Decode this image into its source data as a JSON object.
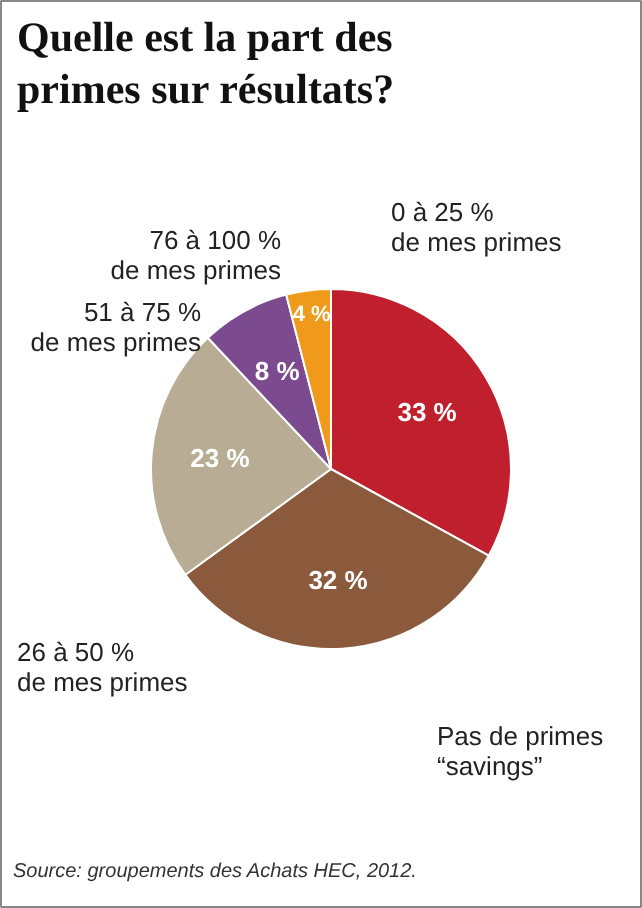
{
  "chart_data": {
    "type": "pie",
    "title": "Quelle est la part des primes sur résultats?",
    "categories": [
      "0 à 25 %\nde mes primes",
      "Pas de primes\n“savings”",
      "26 à 50 %\nde mes primes",
      "51 à 75 %\nde mes primes",
      "76 à 100 %\nde mes primes"
    ],
    "values": [
      33,
      32,
      23,
      8,
      4
    ],
    "value_labels": [
      "33 %",
      "32 %",
      "23 %",
      "8 %",
      "4 %"
    ],
    "colors": [
      "#c0202e",
      "#8b5a3c",
      "#b8ad94",
      "#7b4a8f",
      "#f09a1c"
    ],
    "annotations": [
      "Source: groupements des Achats HEC, 2012."
    ]
  }
}
